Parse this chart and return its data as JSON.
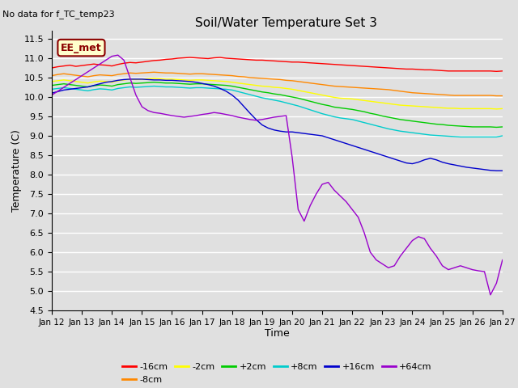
{
  "title": "Soil/Water Temperature Set 3",
  "note": "No data for f_TC_temp23",
  "xlabel": "Time",
  "ylabel": "Temperature (C)",
  "ylim": [
    4.5,
    11.7
  ],
  "xlim": [
    0,
    15
  ],
  "xtick_labels": [
    "Jan 12",
    "Jan 13",
    "Jan 14",
    "Jan 15",
    "Jan 16",
    "Jan 17",
    "Jan 18",
    "Jan 19",
    "Jan 20",
    "Jan 21",
    "Jan 22",
    "Jan 23",
    "Jan 24",
    "Jan 25",
    "Jan 26",
    "Jan 27"
  ],
  "ytick_values": [
    4.5,
    5.0,
    5.5,
    6.0,
    6.5,
    7.0,
    7.5,
    8.0,
    8.5,
    9.0,
    9.5,
    10.0,
    10.5,
    11.0,
    11.5
  ],
  "bg_color": "#e0e0e0",
  "grid_color": "#ffffff",
  "annotation_box": {
    "text": "EE_met",
    "facecolor": "#ffffcc",
    "edgecolor": "#8b0000"
  },
  "series": [
    {
      "label": "-16cm",
      "color": "#ff0000",
      "data_x": [
        0,
        0.2,
        0.4,
        0.6,
        0.8,
        1.0,
        1.2,
        1.4,
        1.6,
        1.8,
        2.0,
        2.2,
        2.4,
        2.6,
        2.8,
        3.0,
        3.2,
        3.4,
        3.6,
        3.8,
        4.0,
        4.2,
        4.4,
        4.6,
        4.8,
        5.0,
        5.2,
        5.4,
        5.6,
        5.8,
        6.0,
        6.2,
        6.4,
        6.6,
        6.8,
        7.0,
        7.2,
        7.4,
        7.6,
        7.8,
        8.0,
        8.2,
        8.4,
        8.6,
        8.8,
        9.0,
        9.2,
        9.4,
        9.6,
        9.8,
        10.0,
        10.2,
        10.4,
        10.6,
        10.8,
        11.0,
        11.2,
        11.4,
        11.6,
        11.8,
        12.0,
        12.2,
        12.4,
        12.6,
        12.8,
        13.0,
        13.2,
        13.4,
        13.6,
        13.8,
        14.0,
        14.2,
        14.4,
        14.6,
        14.8,
        15.0
      ],
      "data_y": [
        10.75,
        10.78,
        10.8,
        10.82,
        10.79,
        10.81,
        10.83,
        10.85,
        10.83,
        10.82,
        10.8,
        10.84,
        10.87,
        10.89,
        10.88,
        10.9,
        10.92,
        10.94,
        10.95,
        10.97,
        10.98,
        11.0,
        11.01,
        11.02,
        11.01,
        11.0,
        10.99,
        11.01,
        11.02,
        11.0,
        10.99,
        10.98,
        10.97,
        10.96,
        10.95,
        10.95,
        10.94,
        10.93,
        10.92,
        10.91,
        10.9,
        10.9,
        10.89,
        10.88,
        10.87,
        10.86,
        10.85,
        10.84,
        10.83,
        10.82,
        10.81,
        10.8,
        10.79,
        10.78,
        10.77,
        10.76,
        10.75,
        10.74,
        10.73,
        10.72,
        10.72,
        10.71,
        10.7,
        10.7,
        10.69,
        10.68,
        10.67,
        10.67,
        10.67,
        10.67,
        10.67,
        10.67,
        10.67,
        10.67,
        10.66,
        10.67
      ]
    },
    {
      "label": "-8cm",
      "color": "#ff8800",
      "data_x": [
        0,
        0.2,
        0.4,
        0.6,
        0.8,
        1.0,
        1.2,
        1.4,
        1.6,
        1.8,
        2.0,
        2.2,
        2.4,
        2.6,
        2.8,
        3.0,
        3.2,
        3.4,
        3.6,
        3.8,
        4.0,
        4.2,
        4.4,
        4.6,
        4.8,
        5.0,
        5.2,
        5.4,
        5.6,
        5.8,
        6.0,
        6.2,
        6.4,
        6.6,
        6.8,
        7.0,
        7.2,
        7.4,
        7.6,
        7.8,
        8.0,
        8.2,
        8.4,
        8.6,
        8.8,
        9.0,
        9.2,
        9.4,
        9.6,
        9.8,
        10.0,
        10.2,
        10.4,
        10.6,
        10.8,
        11.0,
        11.2,
        11.4,
        11.6,
        11.8,
        12.0,
        12.2,
        12.4,
        12.6,
        12.8,
        13.0,
        13.2,
        13.4,
        13.6,
        13.8,
        14.0,
        14.2,
        14.4,
        14.6,
        14.8,
        15.0
      ],
      "data_y": [
        10.55,
        10.58,
        10.6,
        10.58,
        10.56,
        10.54,
        10.52,
        10.55,
        10.57,
        10.56,
        10.55,
        10.58,
        10.6,
        10.62,
        10.61,
        10.62,
        10.63,
        10.64,
        10.63,
        10.62,
        10.62,
        10.61,
        10.6,
        10.59,
        10.6,
        10.6,
        10.59,
        10.58,
        10.57,
        10.56,
        10.55,
        10.53,
        10.52,
        10.5,
        10.49,
        10.48,
        10.47,
        10.46,
        10.45,
        10.43,
        10.42,
        10.4,
        10.38,
        10.36,
        10.34,
        10.32,
        10.3,
        10.28,
        10.27,
        10.26,
        10.25,
        10.24,
        10.23,
        10.22,
        10.21,
        10.2,
        10.19,
        10.17,
        10.15,
        10.13,
        10.11,
        10.1,
        10.09,
        10.08,
        10.07,
        10.06,
        10.05,
        10.04,
        10.04,
        10.04,
        10.04,
        10.04,
        10.04,
        10.04,
        10.03,
        10.03
      ]
    },
    {
      "label": "-2cm",
      "color": "#ffff00",
      "data_x": [
        0,
        0.2,
        0.4,
        0.6,
        0.8,
        1.0,
        1.2,
        1.4,
        1.6,
        1.8,
        2.0,
        2.2,
        2.4,
        2.6,
        2.8,
        3.0,
        3.2,
        3.4,
        3.6,
        3.8,
        4.0,
        4.2,
        4.4,
        4.6,
        4.8,
        5.0,
        5.2,
        5.4,
        5.6,
        5.8,
        6.0,
        6.2,
        6.4,
        6.6,
        6.8,
        7.0,
        7.2,
        7.4,
        7.6,
        7.8,
        8.0,
        8.2,
        8.4,
        8.6,
        8.8,
        9.0,
        9.2,
        9.4,
        9.6,
        9.8,
        10.0,
        10.2,
        10.4,
        10.6,
        10.8,
        11.0,
        11.2,
        11.4,
        11.6,
        11.8,
        12.0,
        12.2,
        12.4,
        12.6,
        12.8,
        13.0,
        13.2,
        13.4,
        13.6,
        13.8,
        14.0,
        14.2,
        14.4,
        14.6,
        14.8,
        15.0
      ],
      "data_y": [
        10.4,
        10.42,
        10.44,
        10.42,
        10.4,
        10.38,
        10.36,
        10.39,
        10.41,
        10.4,
        10.38,
        10.42,
        10.44,
        10.46,
        10.45,
        10.46,
        10.47,
        10.48,
        10.47,
        10.46,
        10.46,
        10.45,
        10.44,
        10.43,
        10.44,
        10.44,
        10.43,
        10.42,
        10.41,
        10.4,
        10.38,
        10.36,
        10.34,
        10.32,
        10.3,
        10.28,
        10.27,
        10.25,
        10.24,
        10.22,
        10.2,
        10.17,
        10.14,
        10.11,
        10.08,
        10.05,
        10.02,
        9.99,
        9.97,
        9.96,
        9.95,
        9.93,
        9.91,
        9.89,
        9.87,
        9.85,
        9.83,
        9.81,
        9.79,
        9.78,
        9.77,
        9.76,
        9.75,
        9.74,
        9.73,
        9.72,
        9.71,
        9.71,
        9.7,
        9.7,
        9.7,
        9.7,
        9.7,
        9.7,
        9.69,
        9.7
      ]
    },
    {
      "label": "+2cm",
      "color": "#00cc00",
      "data_x": [
        0,
        0.2,
        0.4,
        0.6,
        0.8,
        1.0,
        1.2,
        1.4,
        1.6,
        1.8,
        2.0,
        2.2,
        2.4,
        2.6,
        2.8,
        3.0,
        3.2,
        3.4,
        3.6,
        3.8,
        4.0,
        4.2,
        4.4,
        4.6,
        4.8,
        5.0,
        5.2,
        5.4,
        5.6,
        5.8,
        6.0,
        6.2,
        6.4,
        6.6,
        6.8,
        7.0,
        7.2,
        7.4,
        7.6,
        7.8,
        8.0,
        8.2,
        8.4,
        8.6,
        8.8,
        9.0,
        9.2,
        9.4,
        9.6,
        9.8,
        10.0,
        10.2,
        10.4,
        10.6,
        10.8,
        11.0,
        11.2,
        11.4,
        11.6,
        11.8,
        12.0,
        12.2,
        12.4,
        12.6,
        12.8,
        13.0,
        13.2,
        13.4,
        13.6,
        13.8,
        14.0,
        14.2,
        14.4,
        14.6,
        14.8,
        15.0
      ],
      "data_y": [
        10.3,
        10.32,
        10.34,
        10.32,
        10.3,
        10.28,
        10.26,
        10.29,
        10.31,
        10.3,
        10.28,
        10.32,
        10.34,
        10.36,
        10.35,
        10.36,
        10.37,
        10.38,
        10.37,
        10.36,
        10.36,
        10.35,
        10.34,
        10.33,
        10.34,
        10.34,
        10.33,
        10.32,
        10.31,
        10.3,
        10.28,
        10.25,
        10.22,
        10.19,
        10.16,
        10.13,
        10.11,
        10.08,
        10.06,
        10.03,
        10.0,
        9.97,
        9.93,
        9.89,
        9.85,
        9.81,
        9.78,
        9.74,
        9.72,
        9.7,
        9.68,
        9.65,
        9.62,
        9.58,
        9.55,
        9.51,
        9.48,
        9.45,
        9.42,
        9.4,
        9.38,
        9.36,
        9.34,
        9.32,
        9.3,
        9.29,
        9.27,
        9.26,
        9.25,
        9.24,
        9.23,
        9.23,
        9.23,
        9.23,
        9.22,
        9.23
      ]
    },
    {
      "label": "+8cm",
      "color": "#00cccc",
      "data_x": [
        0,
        0.2,
        0.4,
        0.6,
        0.8,
        1.0,
        1.2,
        1.4,
        1.6,
        1.8,
        2.0,
        2.2,
        2.4,
        2.6,
        2.8,
        3.0,
        3.2,
        3.4,
        3.6,
        3.8,
        4.0,
        4.2,
        4.4,
        4.6,
        4.8,
        5.0,
        5.2,
        5.4,
        5.6,
        5.8,
        6.0,
        6.2,
        6.4,
        6.6,
        6.8,
        7.0,
        7.2,
        7.4,
        7.6,
        7.8,
        8.0,
        8.2,
        8.4,
        8.6,
        8.8,
        9.0,
        9.2,
        9.4,
        9.6,
        9.8,
        10.0,
        10.2,
        10.4,
        10.6,
        10.8,
        11.0,
        11.2,
        11.4,
        11.6,
        11.8,
        12.0,
        12.2,
        12.4,
        12.6,
        12.8,
        13.0,
        13.2,
        13.4,
        13.6,
        13.8,
        14.0,
        14.2,
        14.4,
        14.6,
        14.8,
        15.0
      ],
      "data_y": [
        10.2,
        10.22,
        10.24,
        10.22,
        10.2,
        10.18,
        10.16,
        10.19,
        10.21,
        10.2,
        10.18,
        10.22,
        10.24,
        10.26,
        10.25,
        10.26,
        10.27,
        10.28,
        10.27,
        10.26,
        10.26,
        10.25,
        10.24,
        10.23,
        10.24,
        10.24,
        10.23,
        10.22,
        10.21,
        10.2,
        10.18,
        10.14,
        10.1,
        10.06,
        10.02,
        9.98,
        9.95,
        9.92,
        9.89,
        9.85,
        9.81,
        9.77,
        9.72,
        9.67,
        9.62,
        9.57,
        9.53,
        9.49,
        9.46,
        9.44,
        9.42,
        9.38,
        9.34,
        9.3,
        9.26,
        9.22,
        9.18,
        9.15,
        9.12,
        9.1,
        9.08,
        9.06,
        9.04,
        9.02,
        9.01,
        9.0,
        8.99,
        8.98,
        8.97,
        8.97,
        8.97,
        8.97,
        8.97,
        8.97,
        8.97,
        9.0
      ]
    },
    {
      "label": "+16cm",
      "color": "#0000cc",
      "data_x": [
        0,
        0.2,
        0.4,
        0.6,
        0.8,
        1.0,
        1.2,
        1.4,
        1.6,
        1.8,
        2.0,
        2.2,
        2.4,
        2.6,
        2.8,
        3.0,
        3.2,
        3.4,
        3.6,
        3.8,
        4.0,
        4.2,
        4.4,
        4.6,
        4.8,
        5.0,
        5.2,
        5.4,
        5.6,
        5.8,
        6.0,
        6.2,
        6.4,
        6.6,
        6.8,
        7.0,
        7.2,
        7.4,
        7.6,
        7.8,
        8.0,
        8.2,
        8.4,
        8.6,
        8.8,
        9.0,
        9.2,
        9.4,
        9.6,
        9.8,
        10.0,
        10.2,
        10.4,
        10.6,
        10.8,
        11.0,
        11.2,
        11.4,
        11.6,
        11.8,
        12.0,
        12.2,
        12.4,
        12.6,
        12.8,
        13.0,
        13.2,
        13.4,
        13.6,
        13.8,
        14.0,
        14.2,
        14.4,
        14.6,
        14.8,
        15.0
      ],
      "data_y": [
        10.1,
        10.14,
        10.18,
        10.2,
        10.22,
        10.24,
        10.26,
        10.3,
        10.34,
        10.38,
        10.4,
        10.43,
        10.45,
        10.46,
        10.46,
        10.46,
        10.45,
        10.44,
        10.44,
        10.43,
        10.43,
        10.42,
        10.41,
        10.4,
        10.38,
        10.35,
        10.32,
        10.28,
        10.22,
        10.15,
        10.05,
        9.92,
        9.75,
        9.58,
        9.42,
        9.28,
        9.2,
        9.15,
        9.12,
        9.1,
        9.1,
        9.08,
        9.06,
        9.04,
        9.02,
        9.0,
        8.95,
        8.9,
        8.85,
        8.8,
        8.75,
        8.7,
        8.65,
        8.6,
        8.55,
        8.5,
        8.45,
        8.4,
        8.35,
        8.3,
        8.28,
        8.32,
        8.38,
        8.42,
        8.38,
        8.32,
        8.28,
        8.25,
        8.22,
        8.19,
        8.17,
        8.15,
        8.13,
        8.11,
        8.1,
        8.1
      ]
    },
    {
      "label": "+64cm",
      "color": "#9900cc",
      "data_x": [
        0,
        0.2,
        0.4,
        0.6,
        0.8,
        1.0,
        1.2,
        1.4,
        1.6,
        1.8,
        2.0,
        2.2,
        2.4,
        2.6,
        2.8,
        3.0,
        3.2,
        3.4,
        3.6,
        3.8,
        4.0,
        4.2,
        4.4,
        4.6,
        4.8,
        5.0,
        5.2,
        5.4,
        5.6,
        5.8,
        6.0,
        6.2,
        6.4,
        6.6,
        6.8,
        7.0,
        7.2,
        7.4,
        7.6,
        7.8,
        8.0,
        8.2,
        8.4,
        8.6,
        8.8,
        9.0,
        9.2,
        9.4,
        9.6,
        9.8,
        10.0,
        10.2,
        10.4,
        10.6,
        10.8,
        11.0,
        11.2,
        11.4,
        11.6,
        11.8,
        12.0,
        12.2,
        12.4,
        12.6,
        12.8,
        13.0,
        13.2,
        13.4,
        13.6,
        13.8,
        14.0,
        14.2,
        14.4,
        14.6,
        14.8,
        15.0
      ],
      "data_y": [
        10.05,
        10.15,
        10.25,
        10.35,
        10.45,
        10.55,
        10.65,
        10.75,
        10.85,
        10.95,
        11.05,
        11.08,
        10.95,
        10.5,
        10.05,
        9.75,
        9.65,
        9.6,
        9.58,
        9.55,
        9.52,
        9.5,
        9.48,
        9.5,
        9.52,
        9.55,
        9.57,
        9.6,
        9.58,
        9.55,
        9.52,
        9.48,
        9.45,
        9.42,
        9.4,
        9.42,
        9.45,
        9.48,
        9.5,
        9.52,
        8.45,
        7.1,
        6.8,
        7.2,
        7.5,
        7.75,
        7.8,
        7.6,
        7.45,
        7.3,
        7.1,
        6.9,
        6.5,
        6.0,
        5.8,
        5.7,
        5.6,
        5.65,
        5.9,
        6.1,
        6.3,
        6.4,
        6.35,
        6.1,
        5.9,
        5.65,
        5.55,
        5.6,
        5.65,
        5.6,
        5.55,
        5.52,
        5.5,
        4.9,
        5.2,
        5.8
      ]
    }
  ]
}
